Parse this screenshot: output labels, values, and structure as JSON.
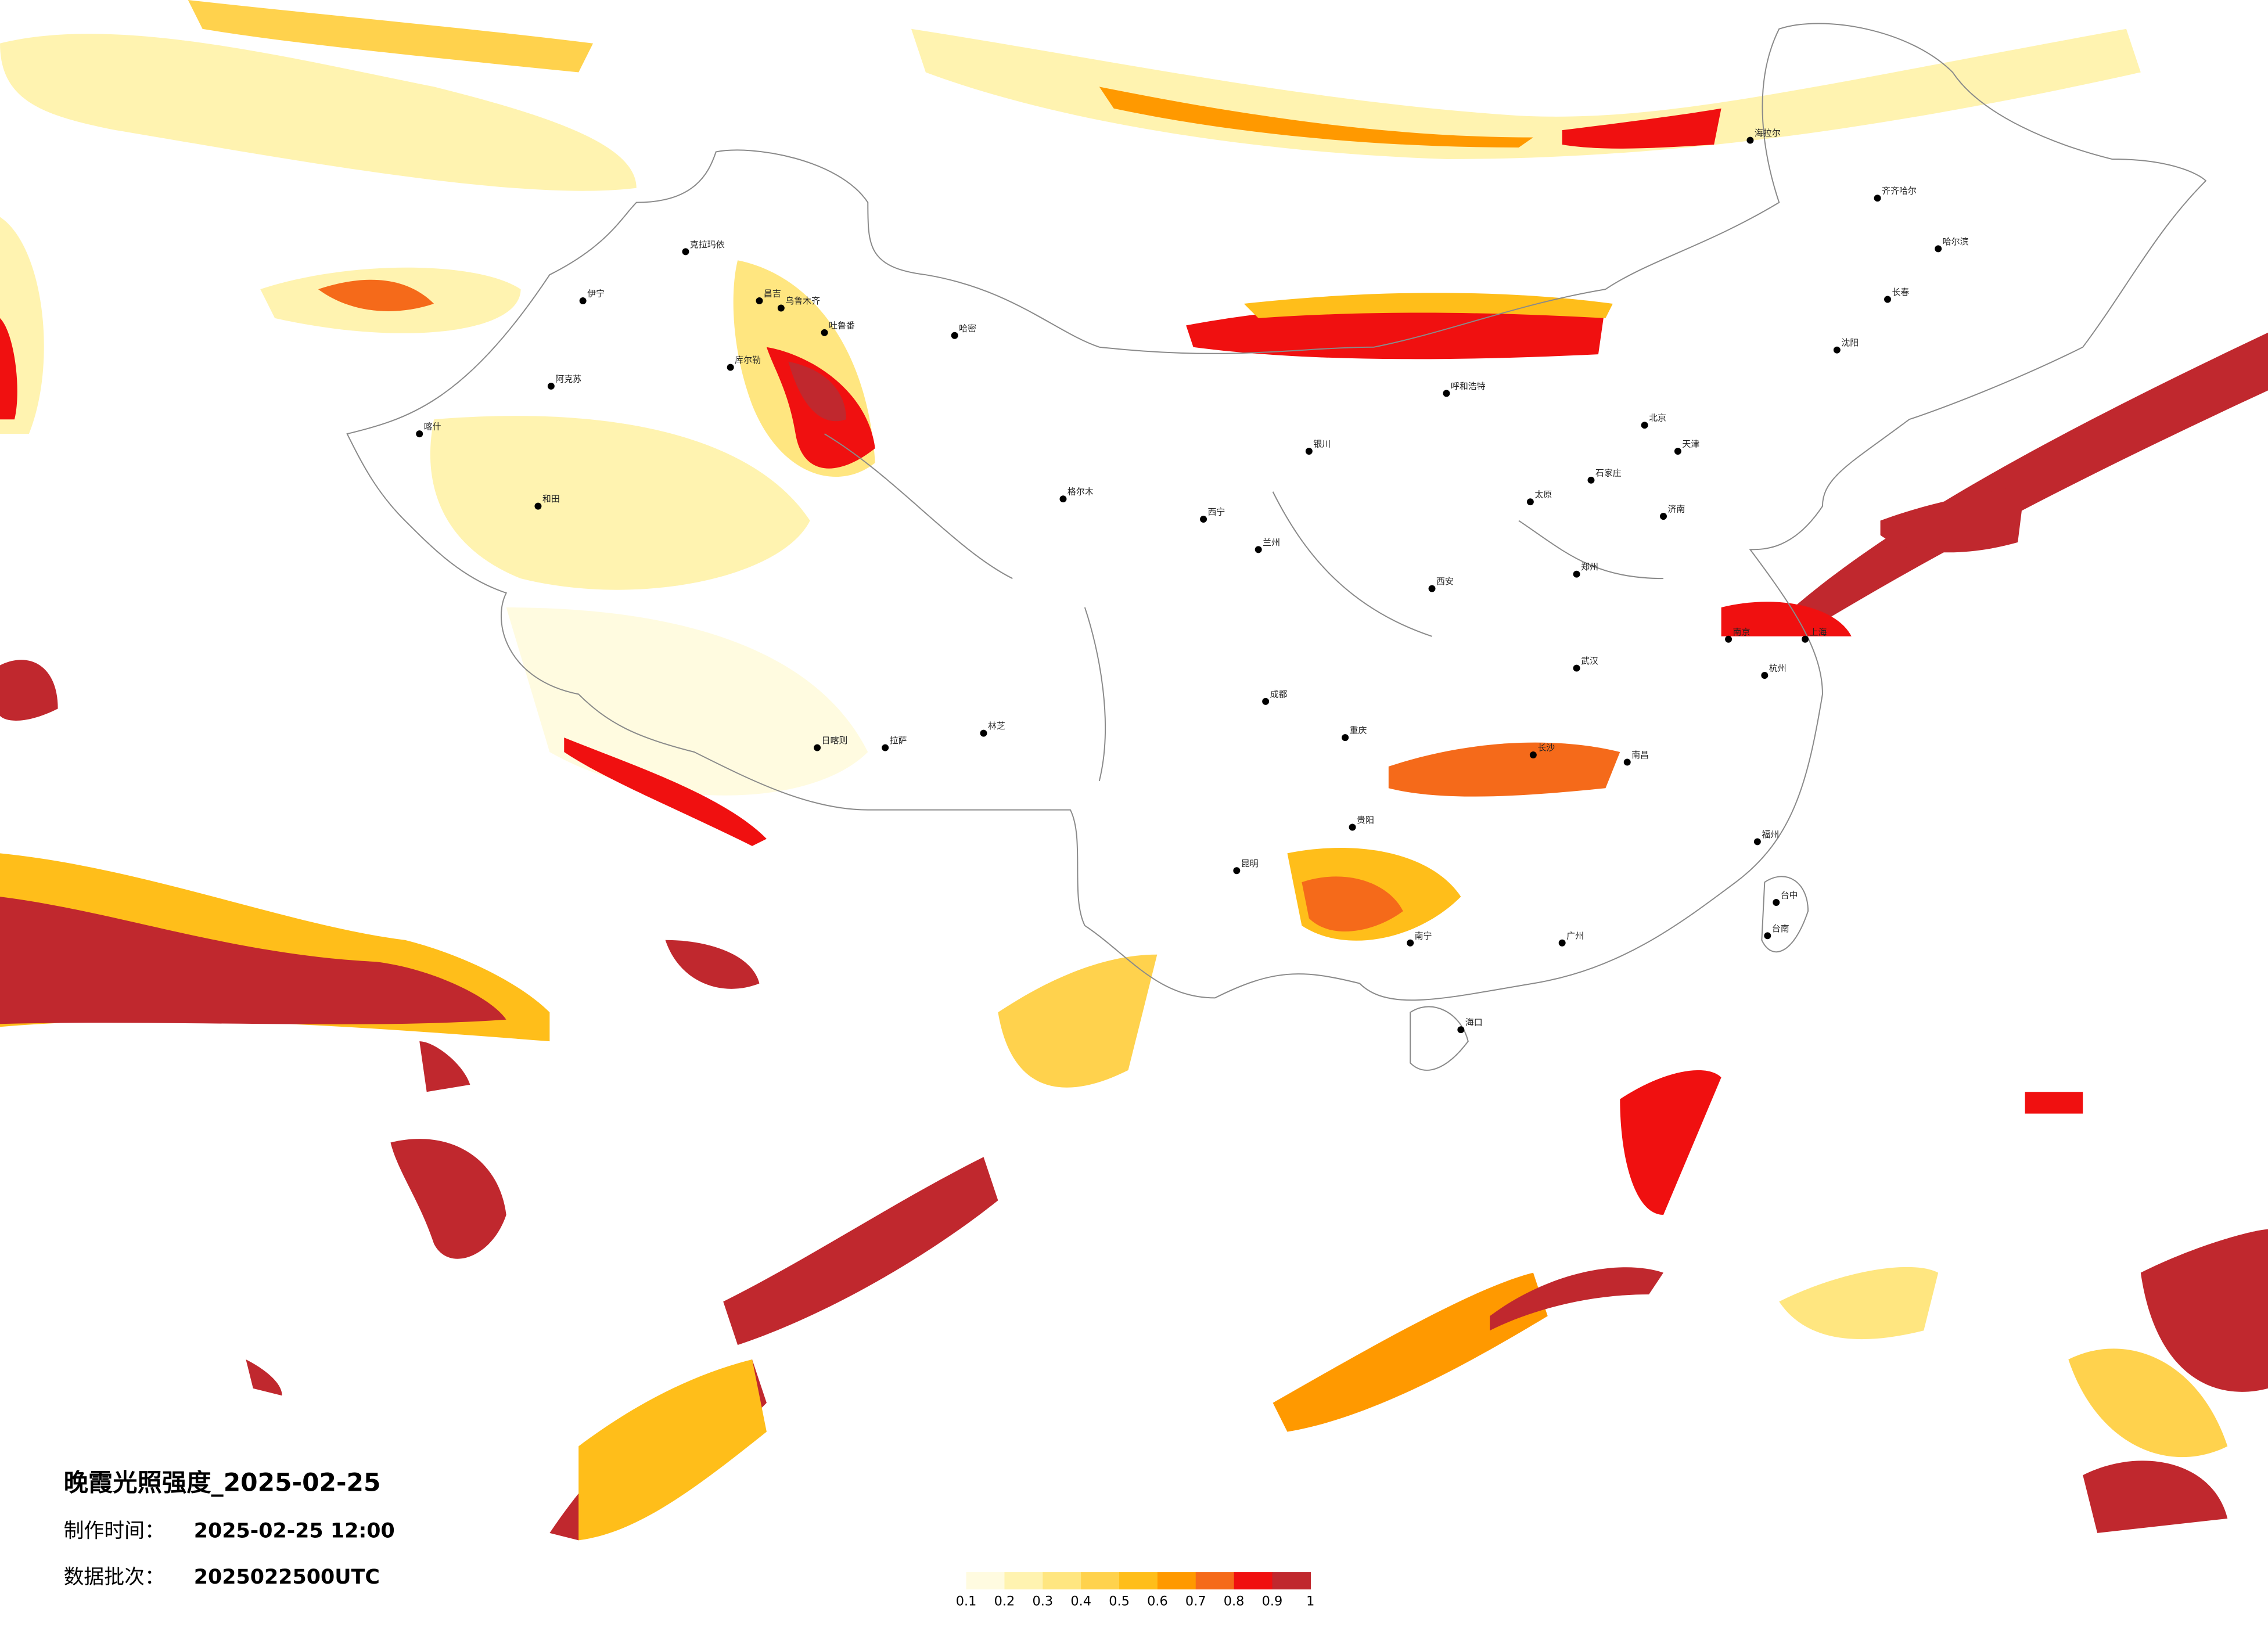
{
  "title": "晚霞光照强度_2025-02-25",
  "meta": [
    {
      "label": "制作时间：",
      "value": "2025-02-25 12:00"
    },
    {
      "label": "数据批次：",
      "value": "2025022500UTC"
    }
  ],
  "legend": {
    "colors": [
      "#fffbe0",
      "#fff3b0",
      "#ffe680",
      "#ffd24d",
      "#ffbe1a",
      "#ff9900",
      "#f56a1a",
      "#f01010",
      "#c0282e"
    ],
    "ticks": [
      0.1,
      0.2,
      0.3,
      0.4,
      0.5,
      0.6,
      0.7,
      0.8,
      0.9,
      1
    ]
  },
  "cities": [
    "克拉玛依",
    "伊宁",
    "昌吉",
    "乌鲁木齐",
    "吐鲁番",
    "哈密",
    "库尔勒",
    "阿克苏",
    "喀什",
    "和田",
    "格尔木",
    "西宁",
    "兰州",
    "银川",
    "呼和浩特",
    "北京",
    "天津",
    "石家庄",
    "太原",
    "济南",
    "郑州",
    "西安",
    "成都",
    "重庆",
    "武汉",
    "长沙",
    "南昌",
    "杭州",
    "上海",
    "南京",
    "福州",
    "广州",
    "南宁",
    "海口",
    "昆明",
    "贵阳",
    "拉萨",
    "日喀则",
    "林芝",
    "沈阳",
    "长春",
    "哈尔滨",
    "齐齐哈尔",
    "海拉尔",
    "台中",
    "台南"
  ]
}
